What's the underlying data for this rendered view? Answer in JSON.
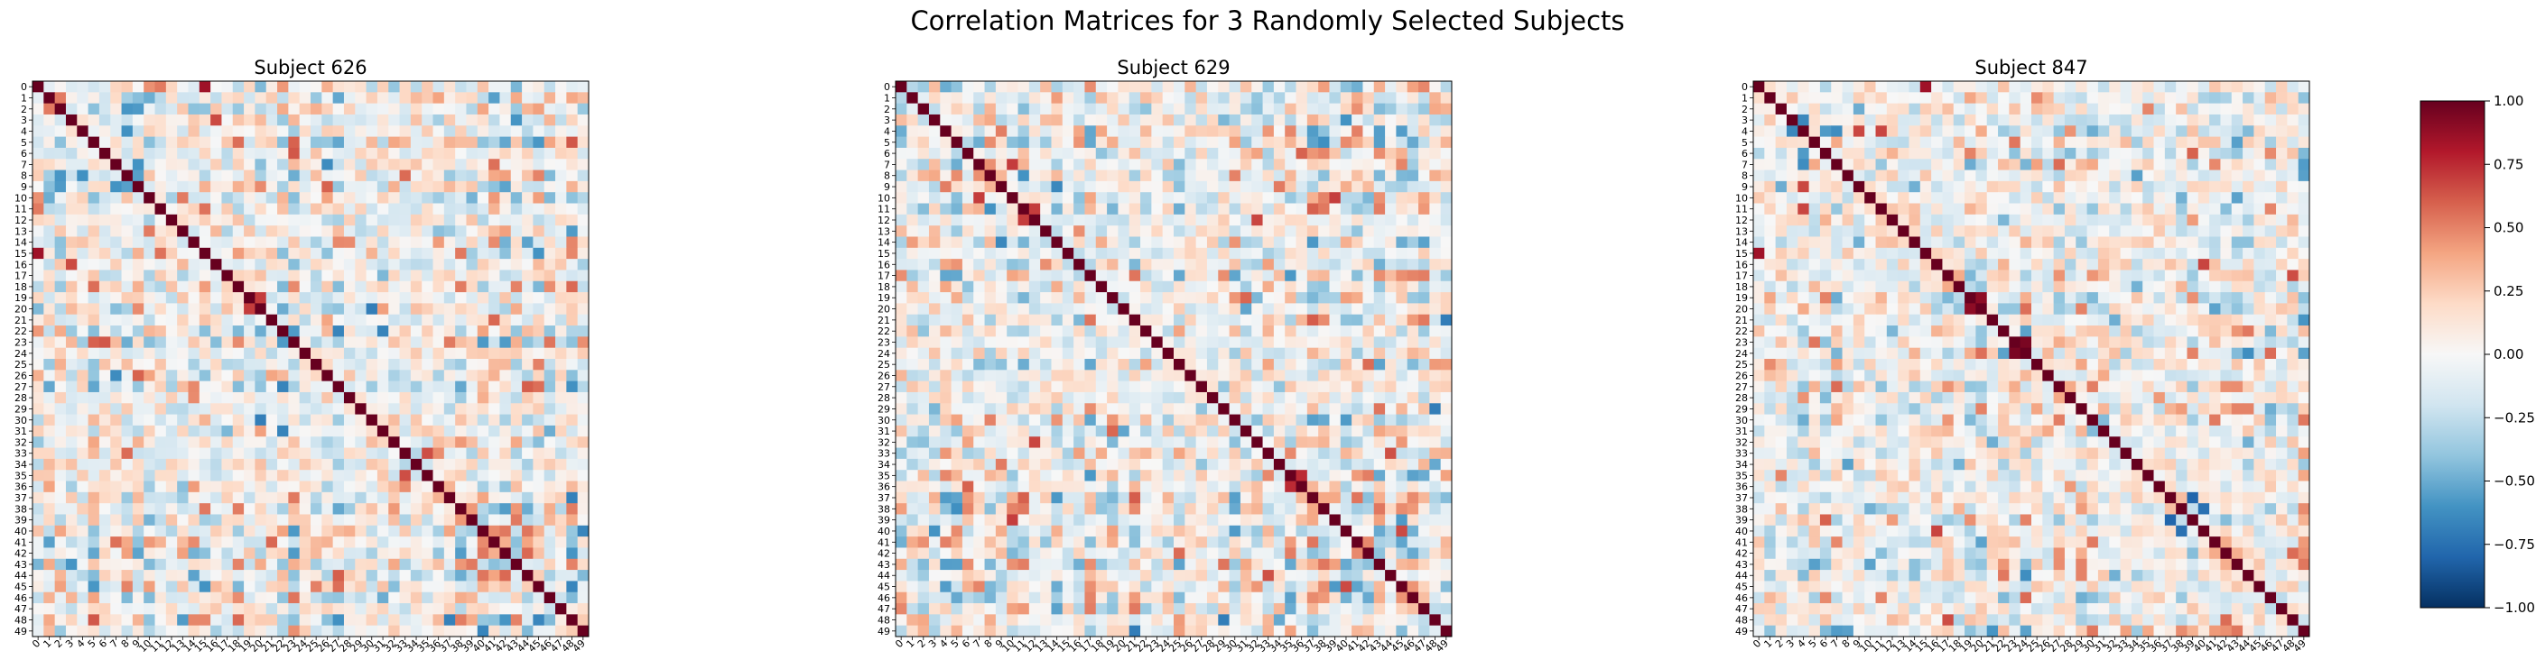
{
  "figure": {
    "title": "Correlation Matrices for 3 Randomly Selected Subjects"
  },
  "chart_data": {
    "type": "heatmap",
    "colormap": "RdBu_r",
    "vmin": -1.0,
    "vmax": 1.0,
    "matrix_size": 50,
    "tick_labels": [
      "0",
      "1",
      "2",
      "3",
      "4",
      "5",
      "6",
      "7",
      "8",
      "9",
      "10",
      "11",
      "12",
      "13",
      "14",
      "15",
      "16",
      "17",
      "18",
      "19",
      "20",
      "21",
      "22",
      "23",
      "24",
      "25",
      "26",
      "27",
      "28",
      "29",
      "30",
      "31",
      "32",
      "33",
      "34",
      "35",
      "36",
      "37",
      "38",
      "39",
      "40",
      "41",
      "42",
      "43",
      "44",
      "45",
      "46",
      "47",
      "48",
      "49"
    ],
    "colorbar": {
      "ticks": [
        1.0,
        0.75,
        0.5,
        0.25,
        0.0,
        -0.25,
        -0.5,
        -0.75,
        -1.0
      ],
      "tick_labels": [
        "1.00",
        "0.75",
        "0.50",
        "0.25",
        "0.00",
        "−0.25",
        "−0.50",
        "−0.75",
        "−1.00"
      ]
    },
    "panels": [
      {
        "title": "Subject 626",
        "seed": 626,
        "diagonal": 1.0,
        "features": [
          {
            "a": 0,
            "b": 15,
            "value": 0.85
          },
          {
            "a": 9,
            "b": 7,
            "value": -0.6
          },
          {
            "a": 8,
            "b": 9,
            "value": -0.55
          },
          {
            "a": 19,
            "b": 20,
            "value": 0.7
          },
          {
            "a": 33,
            "b": 35,
            "value": 0.65
          },
          {
            "a": 41,
            "b": 1,
            "value": -0.55
          }
        ]
      },
      {
        "title": "Subject 629",
        "seed": 629,
        "diagonal": 1.0,
        "features": [
          {
            "a": 7,
            "b": 10,
            "value": 0.7
          },
          {
            "a": 11,
            "b": 12,
            "value": 0.7
          },
          {
            "a": 9,
            "b": 14,
            "value": -0.65
          },
          {
            "a": 40,
            "b": 3,
            "value": -0.6
          },
          {
            "a": 35,
            "b": 36,
            "value": 0.75
          },
          {
            "a": 8,
            "b": 11,
            "value": -0.6
          }
        ]
      },
      {
        "title": "Subject 847",
        "seed": 847,
        "diagonal": 1.0,
        "features": [
          {
            "a": 0,
            "b": 15,
            "value": 0.85
          },
          {
            "a": 19,
            "b": 20,
            "value": 0.9
          },
          {
            "a": 23,
            "b": 24,
            "value": 0.95
          },
          {
            "a": 37,
            "b": 39,
            "value": -0.8
          },
          {
            "a": 38,
            "b": 40,
            "value": -0.75
          },
          {
            "a": 3,
            "b": 4,
            "value": -0.65
          }
        ]
      }
    ]
  }
}
